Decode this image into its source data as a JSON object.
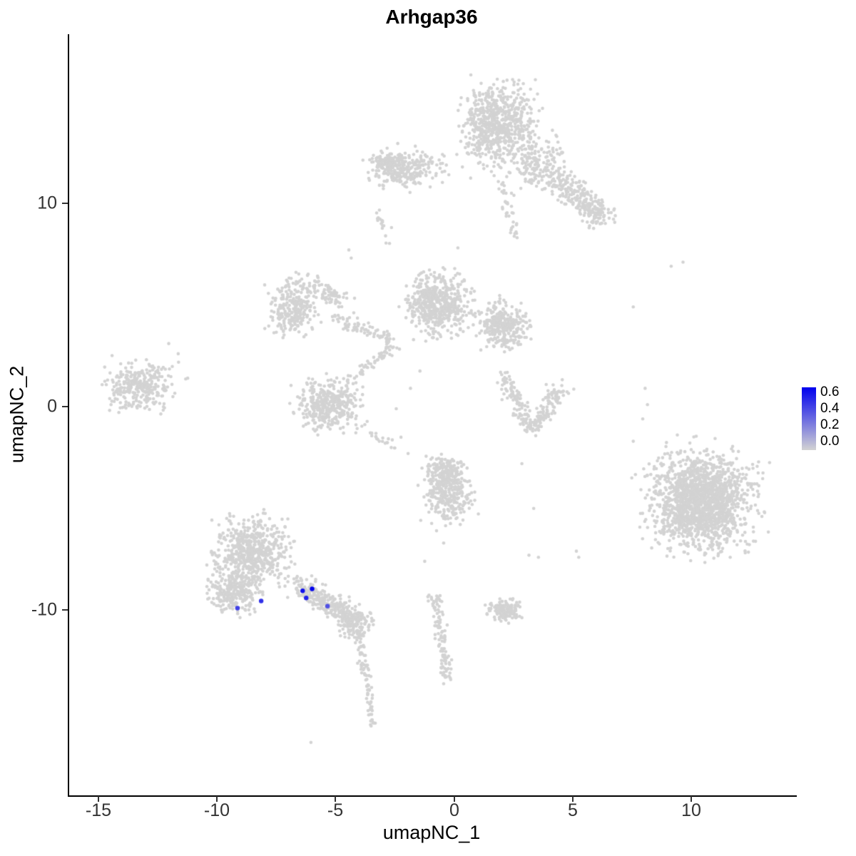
{
  "chart_data": {
    "type": "scatter",
    "title": "Arhgap36",
    "xlabel": "umapNC_1",
    "ylabel": "umapNC_2",
    "xlim": [
      -16.3,
      14.4
    ],
    "ylim": [
      -19.1,
      18.3
    ],
    "x_tick_labels": [
      "-15",
      "-10",
      "-5",
      "0",
      "5",
      "10"
    ],
    "x_tick_values": [
      -15,
      -10,
      -5,
      0,
      5,
      10
    ],
    "y_tick_labels": [
      "10",
      "0",
      "-10"
    ],
    "y_tick_values": [
      10,
      0,
      -10
    ],
    "grid": false,
    "point_color": "#d3d3d3",
    "highlight_color": "#0000ee",
    "legend": {
      "position": "right",
      "tick_labels": [
        "0.6",
        "0.4",
        "0.2",
        "0.0"
      ],
      "tick_values": [
        0.6,
        0.4,
        0.2,
        0.0
      ],
      "color_low": "#d3d3d3",
      "color_high": "#0000ee"
    },
    "clusters": [
      {
        "name": "top-main",
        "shape": "blob",
        "cx": 1.8,
        "cy": 13.9,
        "rx": 1.75,
        "ry": 2.35,
        "n": 700
      },
      {
        "name": "top-right-upper",
        "shape": "blob",
        "cx": 3.5,
        "cy": 11.9,
        "rx": 1.5,
        "ry": 1.5,
        "n": 180
      },
      {
        "name": "top-right-trail",
        "shape": "band",
        "x1": 4.3,
        "y1": 11.2,
        "x2": 6.1,
        "y2": 9.4,
        "w": 1.2,
        "n": 180
      },
      {
        "name": "top-right-tip",
        "shape": "blob",
        "cx": 6.0,
        "cy": 9.5,
        "rx": 0.9,
        "ry": 0.9,
        "n": 70
      },
      {
        "name": "top-lower-wisp",
        "shape": "band",
        "x1": 1.9,
        "y1": 11.4,
        "x2": 2.5,
        "y2": 8.5,
        "w": 0.5,
        "n": 35
      },
      {
        "name": "upper-left",
        "shape": "blob",
        "cx": -2.0,
        "cy": 11.7,
        "rx": 1.8,
        "ry": 1.1,
        "n": 240
      },
      {
        "name": "upper-left-core",
        "shape": "blob",
        "cx": -2.8,
        "cy": 11.9,
        "rx": 0.9,
        "ry": 0.75,
        "n": 110
      },
      {
        "name": "upper-left-wisp",
        "shape": "band",
        "x1": -3.3,
        "y1": 9.6,
        "x2": -2.9,
        "y2": 8.0,
        "w": 0.3,
        "n": 16
      },
      {
        "name": "mid-left-loop",
        "shape": "blob",
        "cx": -6.85,
        "cy": 4.9,
        "rx": 1.15,
        "ry": 1.6,
        "n": 260
      },
      {
        "name": "mid-left-arm",
        "shape": "band",
        "x1": -6.2,
        "y1": 6.2,
        "x2": -4.6,
        "y2": 5.0,
        "w": 0.8,
        "n": 80
      },
      {
        "name": "mid-center",
        "shape": "blob",
        "cx": -0.75,
        "cy": 5.05,
        "rx": 1.55,
        "ry": 1.75,
        "n": 520
      },
      {
        "name": "mid-right",
        "shape": "blob",
        "cx": 2.0,
        "cy": 4.0,
        "rx": 1.3,
        "ry": 1.4,
        "n": 300
      },
      {
        "name": "mid-strand-left",
        "shape": "band",
        "x1": -5.0,
        "y1": 4.2,
        "x2": -2.6,
        "y2": 3.3,
        "w": 0.7,
        "n": 80
      },
      {
        "name": "mid-strand-down",
        "shape": "band",
        "x1": -2.6,
        "y1": 3.0,
        "x2": -4.6,
        "y2": 1.2,
        "w": 0.6,
        "n": 60
      },
      {
        "name": "mid-lower",
        "shape": "blob",
        "cx": -5.3,
        "cy": 0.1,
        "rx": 1.5,
        "ry": 1.45,
        "n": 380
      },
      {
        "name": "mid-lower-tail",
        "shape": "band",
        "x1": -4.2,
        "y1": -0.9,
        "x2": -2.4,
        "y2": -2.1,
        "w": 0.4,
        "n": 22
      },
      {
        "name": "far-left",
        "shape": "blob",
        "cx": -13.3,
        "cy": 1.0,
        "rx": 1.7,
        "ry": 1.5,
        "n": 300
      },
      {
        "name": "right-crescent-a",
        "shape": "band",
        "x1": 2.0,
        "y1": 1.5,
        "x2": 3.2,
        "y2": -1.15,
        "w": 0.8,
        "n": 110
      },
      {
        "name": "right-crescent-b",
        "shape": "band",
        "x1": 3.2,
        "y1": -1.15,
        "x2": 4.5,
        "y2": 1.0,
        "w": 0.8,
        "n": 110
      },
      {
        "name": "big-right",
        "shape": "blob",
        "cx": 10.4,
        "cy": -4.7,
        "rx": 2.6,
        "ry": 2.9,
        "n": 1300
      },
      {
        "name": "big-right-core",
        "shape": "blob",
        "cx": 10.2,
        "cy": -4.5,
        "rx": 1.8,
        "ry": 2.0,
        "n": 450
      },
      {
        "name": "bottom-left-main",
        "shape": "blob",
        "cx": -8.6,
        "cy": -7.2,
        "rx": 1.8,
        "ry": 1.9,
        "n": 620
      },
      {
        "name": "bottom-left-lower",
        "shape": "blob",
        "cx": -9.4,
        "cy": -9.2,
        "rx": 1.2,
        "ry": 1.1,
        "n": 230
      },
      {
        "name": "bottom-left-trail",
        "shape": "band",
        "x1": -6.7,
        "y1": -8.7,
        "x2": -4.6,
        "y2": -10.2,
        "w": 1.0,
        "n": 260
      },
      {
        "name": "bottom-left-end",
        "shape": "blob",
        "cx": -4.3,
        "cy": -10.6,
        "rx": 0.85,
        "ry": 0.75,
        "n": 150
      },
      {
        "name": "bottom-tail-upper",
        "shape": "band",
        "x1": -4.1,
        "y1": -11.1,
        "x2": -3.7,
        "y2": -13.8,
        "w": 0.35,
        "n": 55
      },
      {
        "name": "bottom-tail-lower",
        "shape": "band",
        "x1": -3.7,
        "y1": -13.8,
        "x2": -3.5,
        "y2": -15.7,
        "w": 0.3,
        "n": 35
      },
      {
        "name": "center-bottom",
        "shape": "blob",
        "cx": -0.3,
        "cy": -4.2,
        "rx": 1.2,
        "ry": 1.7,
        "n": 300
      },
      {
        "name": "center-bottom-core",
        "shape": "blob",
        "cx": -0.4,
        "cy": -3.2,
        "rx": 1.0,
        "ry": 0.9,
        "n": 140
      },
      {
        "name": "center-bottom-strand",
        "shape": "band",
        "x1": -0.9,
        "y1": -9.2,
        "x2": -0.3,
        "y2": -13.5,
        "w": 0.5,
        "n": 110
      },
      {
        "name": "small-bottom-right",
        "shape": "blob",
        "cx": 2.1,
        "cy": -10.0,
        "rx": 0.9,
        "ry": 0.65,
        "n": 140
      }
    ],
    "outlier_points": [
      [
        -2.7,
        8.8
      ],
      [
        -4.5,
        7.7
      ],
      [
        -4.4,
        7.3
      ],
      [
        0.1,
        7.8
      ],
      [
        2.6,
        8.3
      ],
      [
        -1.9,
        0.9
      ],
      [
        -1.5,
        1.75
      ],
      [
        -2.3,
        -1.5
      ],
      [
        -2.0,
        -2.3
      ],
      [
        -2.5,
        -0.1
      ],
      [
        -11.7,
        2.6
      ],
      [
        -11.3,
        1.4
      ],
      [
        -12.1,
        3.1
      ],
      [
        8.0,
        0.9
      ],
      [
        8.1,
        0.1
      ],
      [
        7.9,
        -0.6
      ],
      [
        7.5,
        4.9
      ],
      [
        9.1,
        6.9
      ],
      [
        9.6,
        7.1
      ],
      [
        7.5,
        -1.7
      ],
      [
        3.3,
        -5.0
      ],
      [
        3.1,
        -7.3
      ],
      [
        3.5,
        -7.4
      ],
      [
        5.1,
        -7.1
      ],
      [
        5.2,
        -7.4
      ],
      [
        2.8,
        -2.8
      ],
      [
        -0.8,
        -6.1
      ],
      [
        -0.5,
        -6.7
      ],
      [
        -1.3,
        -7.6
      ],
      [
        -6.1,
        -16.5
      ]
    ],
    "highlighted_points": [
      {
        "x": -9.2,
        "y": -9.9,
        "value": 0.45
      },
      {
        "x": -8.2,
        "y": -9.55,
        "value": 0.5
      },
      {
        "x": -6.45,
        "y": -9.05,
        "value": 0.6
      },
      {
        "x": -6.3,
        "y": -9.4,
        "value": 0.55
      },
      {
        "x": -6.05,
        "y": -8.95,
        "value": 0.65
      },
      {
        "x": -5.4,
        "y": -9.8,
        "value": 0.4
      }
    ]
  }
}
